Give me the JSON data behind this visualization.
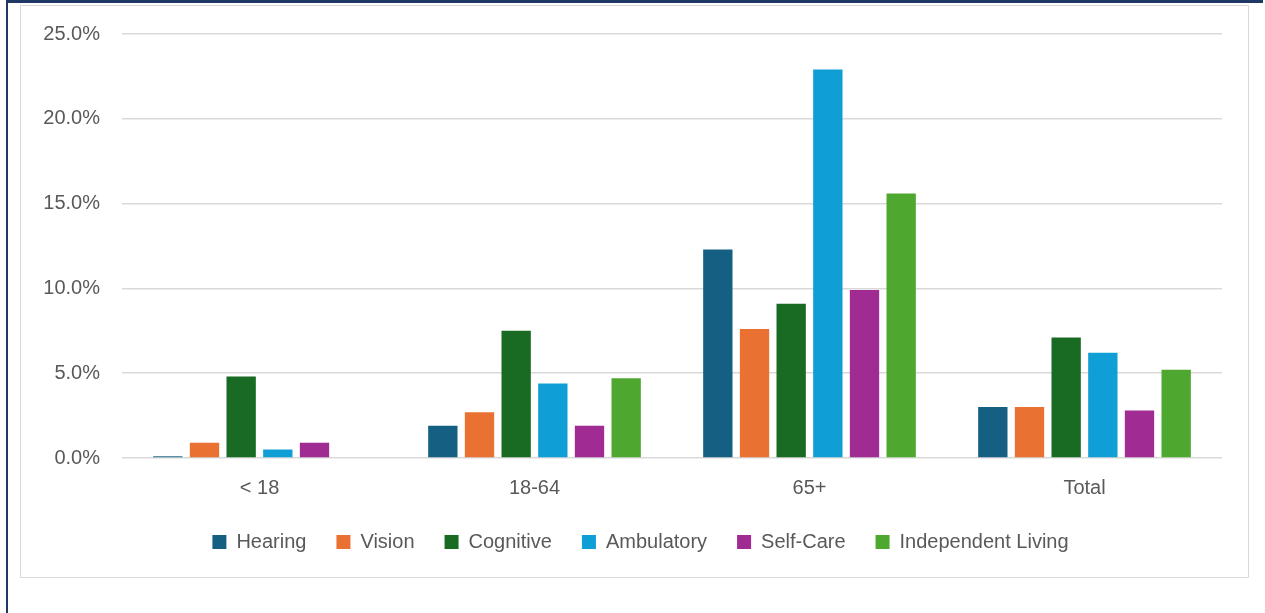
{
  "chart_data": {
    "type": "bar",
    "categories": [
      "< 18",
      "18-64",
      "65+",
      "Total"
    ],
    "series": [
      {
        "name": "Hearing",
        "color": "#156082",
        "values": [
          0.1,
          1.9,
          12.3,
          3.0
        ]
      },
      {
        "name": "Vision",
        "color": "#e97132",
        "values": [
          0.9,
          2.7,
          7.6,
          3.0
        ]
      },
      {
        "name": "Cognitive",
        "color": "#196b24",
        "values": [
          4.8,
          7.5,
          9.1,
          7.1
        ]
      },
      {
        "name": "Ambulatory",
        "color": "#0f9ed5",
        "values": [
          0.5,
          4.4,
          22.9,
          6.2
        ]
      },
      {
        "name": "Self-Care",
        "color": "#a02b93",
        "values": [
          0.9,
          1.9,
          9.9,
          2.8
        ]
      },
      {
        "name": "Independent Living",
        "color": "#4ea72e",
        "values": [
          null,
          4.7,
          15.6,
          5.2
        ]
      }
    ],
    "ylim": [
      0,
      25
    ],
    "yticks": [
      {
        "value": 0,
        "label": "0.0%"
      },
      {
        "value": 5,
        "label": "5.0%"
      },
      {
        "value": 10,
        "label": "10.0%"
      },
      {
        "value": 15,
        "label": "15.0%"
      },
      {
        "value": 20,
        "label": "20.0%"
      },
      {
        "value": 25,
        "label": "25.0%"
      }
    ],
    "grid": "y",
    "legend": "bottom"
  }
}
